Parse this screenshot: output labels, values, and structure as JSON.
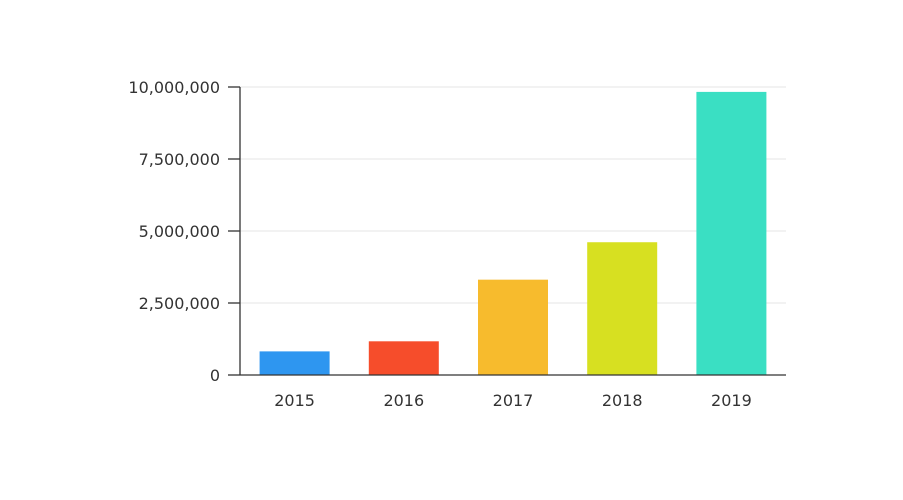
{
  "chart_data": {
    "type": "bar",
    "title": "",
    "xlabel": "",
    "ylabel": "",
    "categories": [
      "2015",
      "2016",
      "2017",
      "2018",
      "2019"
    ],
    "values": [
      820000,
      1170000,
      3310000,
      4610000,
      9830000
    ],
    "colors": [
      "#2e96f0",
      "#f64d2b",
      "#f7bb2d",
      "#d7e021",
      "#3adfc3"
    ],
    "ylim": [
      0,
      10000000
    ],
    "yticks": [
      0,
      2500000,
      5000000,
      7500000,
      10000000
    ],
    "ytick_labels": [
      "0",
      "2,500,000",
      "5,000,000",
      "7,500,000",
      "10,000,000"
    ],
    "grid": true,
    "legend": "none"
  }
}
